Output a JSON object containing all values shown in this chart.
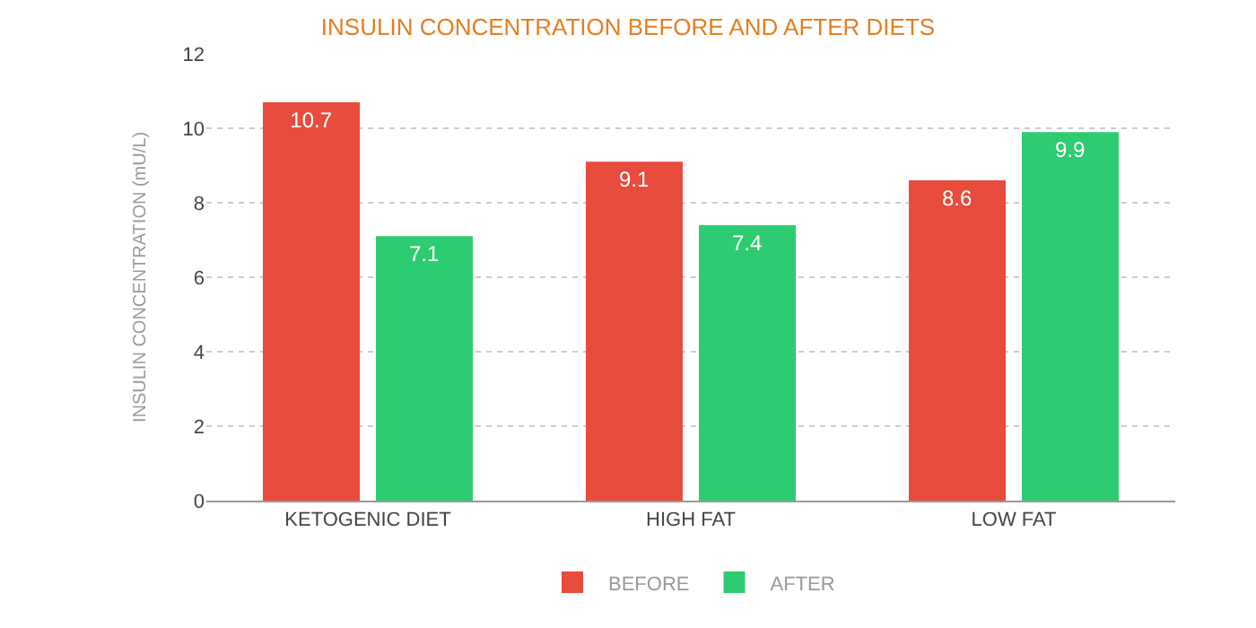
{
  "chart_data": {
    "type": "bar",
    "title": "INSULIN CONCENTRATION BEFORE AND AFTER DIETS",
    "ylabel": "INSULIN CONCENTRATION (mU/L)",
    "categories": [
      "KETOGENIC DIET",
      "HIGH FAT",
      "LOW FAT"
    ],
    "series": [
      {
        "name": "BEFORE",
        "color": "#e74c3c",
        "values": [
          10.7,
          9.1,
          8.6
        ]
      },
      {
        "name": "AFTER",
        "color": "#2ecc71",
        "values": [
          7.1,
          7.4,
          9.9
        ]
      }
    ],
    "ylim": [
      0,
      12
    ],
    "yticks": [
      0,
      2,
      4,
      6,
      8,
      10,
      12
    ],
    "grid": "y",
    "legend": "bottom",
    "data_labels": true
  }
}
